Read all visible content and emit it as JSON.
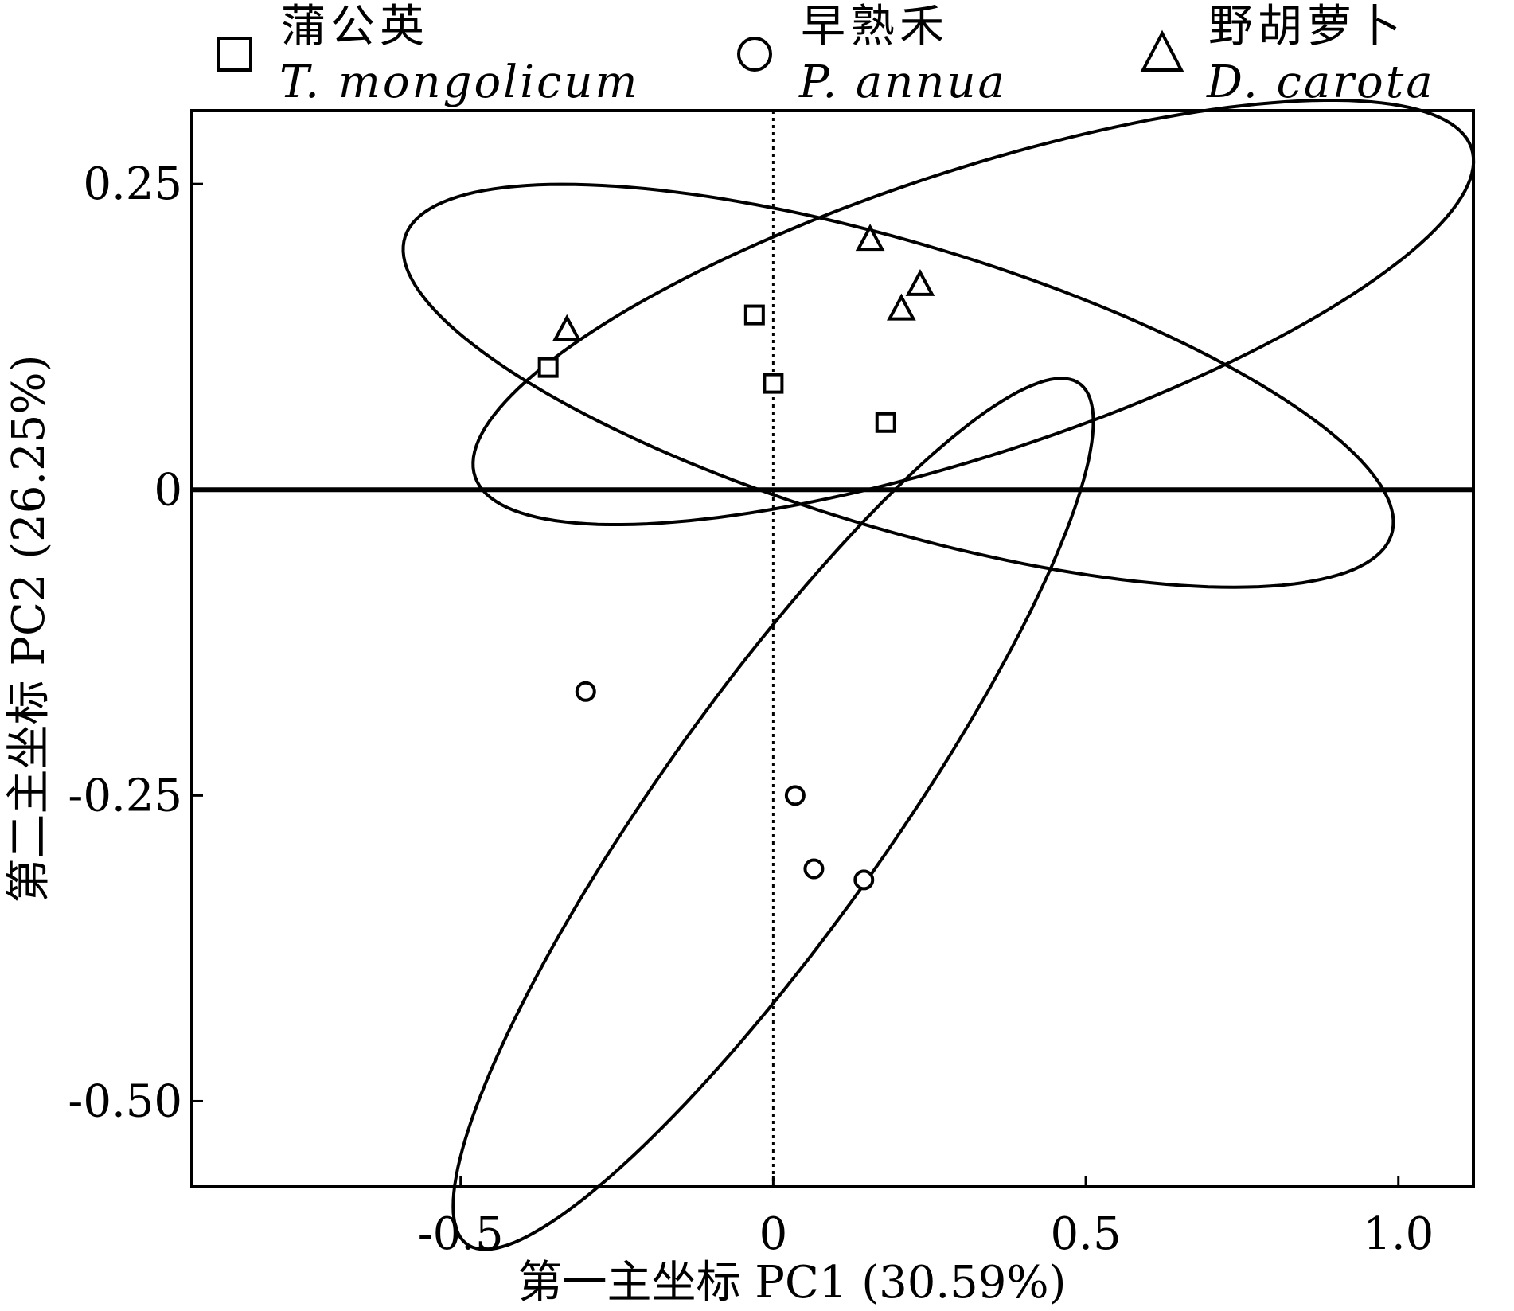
{
  "chart_data": {
    "type": "scatter",
    "title": "",
    "xlabel": "第一主坐标 PC1 (30.59%)",
    "ylabel": "第二主坐标 PC2 (26.25%)",
    "xlim": [
      -0.93,
      1.12
    ],
    "ylim": [
      -0.57,
      0.31
    ],
    "x_ticks": [
      {
        "value": -0.5,
        "label": "-0.5"
      },
      {
        "value": 0,
        "label": "0"
      },
      {
        "value": 0.5,
        "label": "0.5"
      },
      {
        "value": 1.0,
        "label": "1.0"
      }
    ],
    "y_ticks": [
      {
        "value": 0.25,
        "label": "0.25"
      },
      {
        "value": 0,
        "label": "0"
      },
      {
        "value": -0.25,
        "label": "-0.25"
      },
      {
        "value": -0.5,
        "label": "-0.50"
      }
    ],
    "grid": false,
    "reference_lines": {
      "vertical_at": 0,
      "vertical_style": "dotted",
      "horizontal_at": 0,
      "horizontal_style": "solid"
    },
    "legend_position": "top",
    "series": [
      {
        "name": "蒲公英",
        "latin_name": "T. mongolicum",
        "marker": "square",
        "points": [
          {
            "x": -0.36,
            "y": 0.1
          },
          {
            "x": -0.03,
            "y": 0.143
          },
          {
            "x": 0.0,
            "y": 0.087
          },
          {
            "x": 0.18,
            "y": 0.055
          }
        ],
        "ellipse": {
          "cx": 0.2,
          "cy": 0.085,
          "rx": 0.8,
          "ry": 0.12,
          "angle_deg": -8.2
        }
      },
      {
        "name": "早熟禾",
        "latin_name": "P. annua",
        "marker": "circle",
        "points": [
          {
            "x": -0.3,
            "y": -0.165
          },
          {
            "x": 0.035,
            "y": -0.25
          },
          {
            "x": 0.065,
            "y": -0.31
          },
          {
            "x": 0.145,
            "y": -0.319
          }
        ],
        "ellipse": {
          "cx": 0.0,
          "cy": -0.265,
          "rx": 0.61,
          "ry": 0.13,
          "angle_deg": 33.8
        }
      },
      {
        "name": "野胡萝卜",
        "latin_name": "D. carota",
        "marker": "triangle",
        "points": [
          {
            "x": -0.33,
            "y": 0.131
          },
          {
            "x": 0.155,
            "y": 0.205
          },
          {
            "x": 0.235,
            "y": 0.168
          },
          {
            "x": 0.205,
            "y": 0.148
          }
        ],
        "ellipse": {
          "cx": 0.32,
          "cy": 0.145,
          "rx": 0.81,
          "ry": 0.12,
          "angle_deg": 9.0
        }
      }
    ]
  }
}
